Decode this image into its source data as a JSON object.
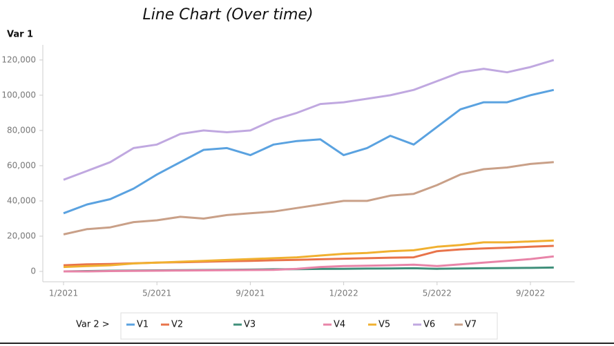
{
  "chart_data": {
    "type": "line",
    "title": "Line Chart (Over time)",
    "y_label": "Var 1",
    "legend_title": "Var 2 >",
    "x": [
      "1/2021",
      "2/2021",
      "3/2021",
      "4/2021",
      "5/2021",
      "6/2021",
      "7/2021",
      "8/2021",
      "9/2021",
      "10/2021",
      "11/2021",
      "12/2021",
      "1/2022",
      "2/2022",
      "3/2022",
      "4/2022",
      "5/2022",
      "6/2022",
      "7/2022",
      "8/2022",
      "9/2022",
      "10/2022"
    ],
    "xticks": [
      "1/2021",
      "5/2021",
      "9/2021",
      "1/2022",
      "5/2022",
      "9/2022"
    ],
    "ylim": [
      -5000,
      127000
    ],
    "yticks": [
      0,
      {
        "value": 20000,
        "label": "20,000"
      },
      {
        "value": 40000,
        "label": "40,000"
      },
      {
        "value": 60000,
        "label": "60,000"
      },
      {
        "value": 80000,
        "label": "80,000"
      },
      {
        "value": 100000,
        "label": "100,000"
      },
      {
        "value": 120000,
        "label": "120,000"
      }
    ],
    "series": [
      {
        "name": "V1",
        "color": "#5aa2e0",
        "values": [
          33000,
          38000,
          41000,
          47000,
          55000,
          62000,
          69000,
          70000,
          66000,
          72000,
          74000,
          75000,
          66000,
          70000,
          77000,
          72000,
          82000,
          92000,
          96000,
          96000,
          100000,
          103000
        ]
      },
      {
        "name": "V2",
        "color": "#e8734a",
        "values": [
          3500,
          4000,
          4200,
          4600,
          5000,
          5200,
          5500,
          5800,
          6000,
          6300,
          6600,
          6900,
          7200,
          7500,
          7800,
          8000,
          11500,
          12500,
          13000,
          13500,
          14000,
          14500
        ]
      },
      {
        "name": "V3",
        "color": "#3f8f7a",
        "values": [
          0,
          200,
          400,
          500,
          600,
          700,
          800,
          900,
          1000,
          1200,
          1300,
          1400,
          1500,
          1600,
          1700,
          1800,
          1500,
          1700,
          1800,
          1900,
          2000,
          2200
        ]
      },
      {
        "name": "V4",
        "color": "#e884a8",
        "values": [
          0,
          0,
          200,
          300,
          400,
          500,
          600,
          700,
          800,
          900,
          1500,
          2500,
          3000,
          3200,
          3500,
          3800,
          3000,
          4000,
          5000,
          6000,
          7000,
          8500
        ]
      },
      {
        "name": "V5",
        "color": "#f0b030",
        "values": [
          2500,
          3000,
          3500,
          4500,
          5000,
          5500,
          6000,
          6500,
          7000,
          7500,
          8000,
          9000,
          10000,
          10500,
          11500,
          12000,
          14000,
          15000,
          16500,
          16500,
          17000,
          17500
        ]
      },
      {
        "name": "V6",
        "color": "#c0a8e0",
        "values": [
          52000,
          57000,
          62000,
          70000,
          72000,
          78000,
          80000,
          79000,
          80000,
          86000,
          90000,
          95000,
          96000,
          98000,
          100000,
          103000,
          108000,
          113000,
          115000,
          113000,
          116000,
          120000
        ]
      },
      {
        "name": "V7",
        "color": "#c9a088",
        "values": [
          21000,
          24000,
          25000,
          28000,
          29000,
          31000,
          30000,
          32000,
          33000,
          34000,
          36000,
          38000,
          40000,
          40000,
          43000,
          44000,
          49000,
          55000,
          58000,
          59000,
          61000,
          62000
        ]
      }
    ]
  }
}
